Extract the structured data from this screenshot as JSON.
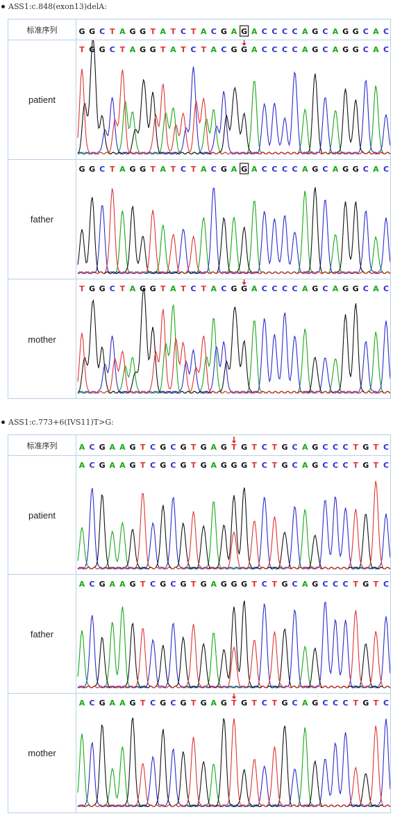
{
  "colors": {
    "A": "#16a816",
    "C": "#2b2bd0",
    "G": "#111111",
    "T": "#e03232",
    "arrow": "#e02020",
    "border": "#b9cfe8"
  },
  "sections": [
    {
      "title": "ASS1:c.848(exon13)delA:",
      "ref_label": "标准序列",
      "ref_seq": "GGCTAGGTATCTACGAGACCCCAGCAGGCAC",
      "ref_boxed_index": 16,
      "rows": [
        {
          "label": "patient",
          "seq": "TGGCTAGGTATCTACGGACCCCAGCAGGCAC",
          "arrow_index": 16,
          "boxed_index": null,
          "mixed_from": 0,
          "mixed_to": 15
        },
        {
          "label": "father",
          "seq": "GGCTAGGTATCTACGAGACCCCAGCAGGCAC",
          "arrow_index": null,
          "boxed_index": 16,
          "mixed_from": null,
          "mixed_to": null
        },
        {
          "label": "mother",
          "seq": "TGGCTAGGTATCTACGGACCCCAGCAGGCAC",
          "arrow_index": 16,
          "boxed_index": null,
          "mixed_from": 0,
          "mixed_to": 15
        }
      ]
    },
    {
      "title": "ASS1:c.773+6(IVS11)T>G:",
      "ref_label": "标准序列",
      "ref_seq": "ACGAAGTCGCGTGAGTGTCTGCAGCCCTGTC",
      "ref_arrow_index": 15,
      "rows": [
        {
          "label": "patient",
          "seq": "ACGAAGTCGCGTGAGGGTCTGCAGCCCTGTC",
          "arrow_index": null,
          "boxed_index": null,
          "hetero_index": 15,
          "hetero_alt": "T"
        },
        {
          "label": "father",
          "seq": "ACGAAGTCGCGTGAGGGTCTGCAGCCCTGTC",
          "arrow_index": null,
          "boxed_index": null,
          "hetero_index": 15,
          "hetero_alt": "T"
        },
        {
          "label": "mother",
          "seq": "ACGAAGTCGCGTGAGTGTCTGCAGCCCTGTC",
          "arrow_index": 15,
          "boxed_index": null,
          "hetero_index": null,
          "hetero_alt": null
        }
      ]
    }
  ]
}
